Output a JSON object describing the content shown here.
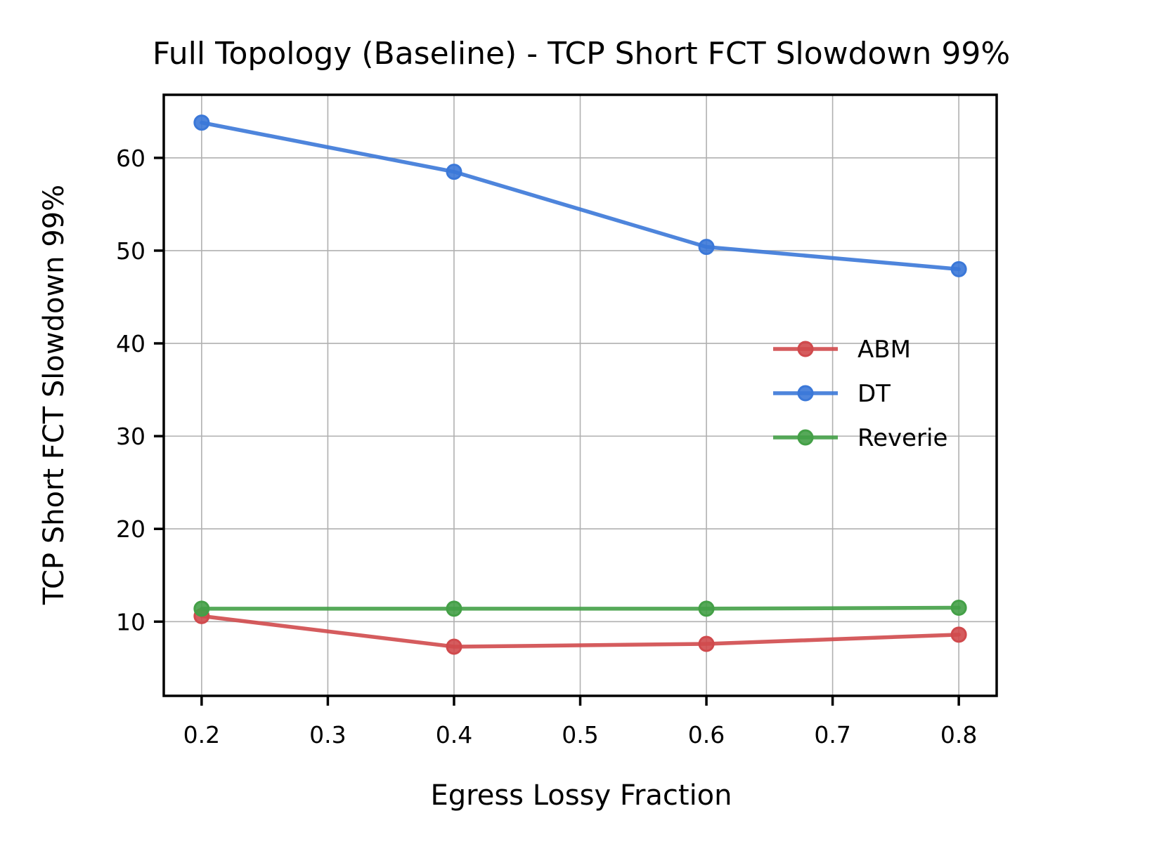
{
  "chart_data": {
    "type": "line",
    "title": "Full Topology (Baseline) - TCP Short FCT Slowdown 99%",
    "xlabel": "Egress Lossy Fraction",
    "ylabel": "TCP Short FCT Slowdown 99%",
    "xlim": [
      0.17,
      0.83
    ],
    "ylim": [
      2.0,
      66.8
    ],
    "xticks": [
      0.2,
      0.3,
      0.4,
      0.5,
      0.6,
      0.7,
      0.8
    ],
    "xtick_labels": [
      "0.2",
      "0.3",
      "0.4",
      "0.5",
      "0.6",
      "0.7",
      "0.8"
    ],
    "yticks": [
      10,
      20,
      30,
      40,
      50,
      60
    ],
    "ytick_labels": [
      "10",
      "20",
      "30",
      "40",
      "50",
      "60"
    ],
    "grid": true,
    "legend_position": "center-right",
    "x": [
      0.2,
      0.4,
      0.6,
      0.8
    ],
    "series": [
      {
        "name": "ABM",
        "color": "#d04a4d",
        "values": [
          10.6,
          7.3,
          7.6,
          8.6
        ]
      },
      {
        "name": "DT",
        "color": "#3b78d8",
        "values": [
          63.8,
          58.5,
          50.4,
          48.0
        ]
      },
      {
        "name": "Reverie",
        "color": "#44a047",
        "values": [
          11.4,
          11.4,
          11.4,
          11.5
        ]
      }
    ]
  }
}
